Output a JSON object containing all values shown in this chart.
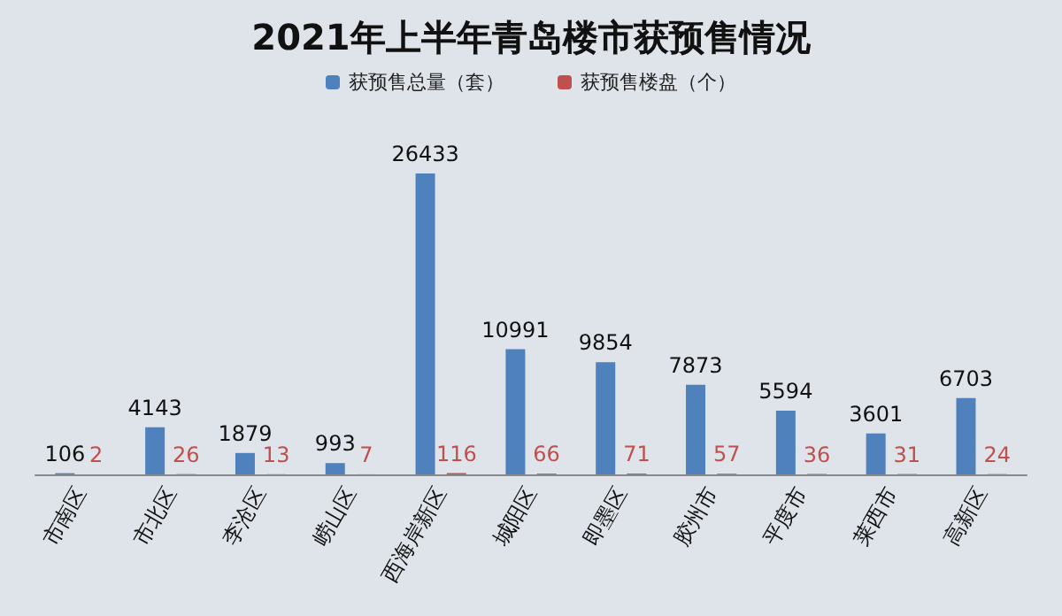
{
  "chart_data": {
    "type": "bar",
    "title": "2021年上半年青岛楼市获预售情况",
    "categories": [
      "市南区",
      "市北区",
      "李沧区",
      "崂山区",
      "西海岸新区",
      "城阳区",
      "即墨区",
      "胶州市",
      "平度市",
      "莱西市",
      "高新区"
    ],
    "series": [
      {
        "name": "获预售总量（套）",
        "color": "#4f81bd",
        "values": [
          106,
          4143,
          1879,
          993,
          26433,
          10991,
          9854,
          7873,
          5594,
          3601,
          6703
        ]
      },
      {
        "name": "获预售楼盘（个）",
        "color": "#c0504d",
        "values": [
          2,
          26,
          13,
          7,
          116,
          66,
          71,
          57,
          36,
          31,
          24
        ]
      }
    ],
    "data_labels": true,
    "legend": "top",
    "grid": false
  }
}
